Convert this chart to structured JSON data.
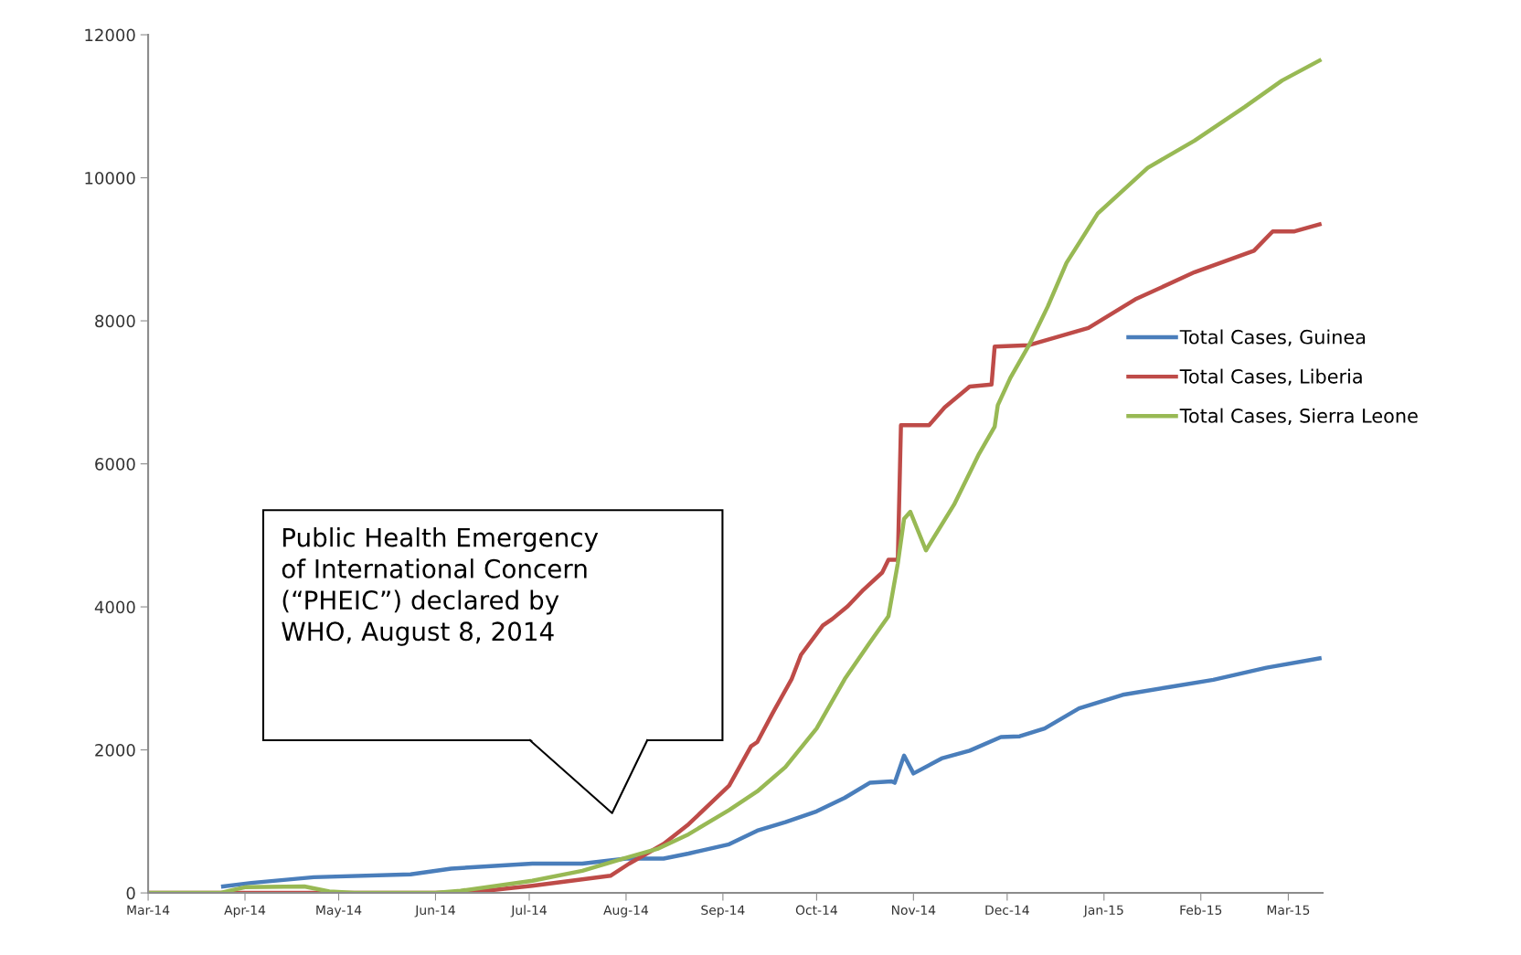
{
  "chart_data": {
    "type": "line",
    "xlim": [
      "2014-03-01",
      "2015-03-12"
    ],
    "xticks": [
      {
        "value": "2014-03-01",
        "label": "Mar-14"
      },
      {
        "value": "2014-04-01",
        "label": "Apr-14"
      },
      {
        "value": "2014-05-01",
        "label": "May-14"
      },
      {
        "value": "2014-06-01",
        "label": "Jun-14"
      },
      {
        "value": "2014-07-01",
        "label": "Jul-14"
      },
      {
        "value": "2014-08-01",
        "label": "Aug-14"
      },
      {
        "value": "2014-09-01",
        "label": "Sep-14"
      },
      {
        "value": "2014-10-01",
        "label": "Oct-14"
      },
      {
        "value": "2014-11-01",
        "label": "Nov-14"
      },
      {
        "value": "2014-12-01",
        "label": "Dec-14"
      },
      {
        "value": "2015-01-01",
        "label": "Jan-15"
      },
      {
        "value": "2015-02-01",
        "label": "Feb-15"
      },
      {
        "value": "2015-03-01",
        "label": "Mar-15"
      }
    ],
    "ylim": [
      0,
      12000
    ],
    "yticks": [
      0,
      2000,
      4000,
      6000,
      8000,
      10000,
      12000
    ],
    "grid": false,
    "legend": "right",
    "marker": "none",
    "line_style": "solid",
    "annotations": [
      "Public Health Emergency\nof International Concern\n(“PHEIC”) declared by\nWHO, August 8, 2014"
    ],
    "series": [
      {
        "name": "Total Cases, Guinea",
        "color": "#4a7ebb",
        "x": [
          "2014-03-25",
          "2014-04-03",
          "2014-04-23",
          "2014-05-24",
          "2014-06-06",
          "2014-07-02",
          "2014-07-18",
          "2014-08-01",
          "2014-08-13",
          "2014-08-21",
          "2014-09-03",
          "2014-09-12",
          "2014-09-21",
          "2014-10-01",
          "2014-10-10",
          "2014-10-18",
          "2014-10-25",
          "2014-10-26",
          "2014-10-29",
          "2014-11-01",
          "2014-11-10",
          "2014-11-19",
          "2014-11-29",
          "2014-12-05",
          "2014-12-13",
          "2014-12-24",
          "2015-01-07",
          "2015-01-22",
          "2015-02-05",
          "2015-02-22",
          "2015-03-11"
        ],
        "values": [
          90,
          140,
          220,
          260,
          340,
          410,
          410,
          480,
          480,
          550,
          680,
          870,
          990,
          1140,
          1330,
          1540,
          1560,
          1540,
          1920,
          1670,
          1880,
          1990,
          2180,
          2190,
          2300,
          2580,
          2770,
          2880,
          2980,
          3150,
          3280
        ]
      },
      {
        "name": "Total Cases, Liberia",
        "color": "#be4b48",
        "x": [
          "2014-03-01",
          "2014-06-01",
          "2014-06-17",
          "2014-07-02",
          "2014-07-27",
          "2014-08-02",
          "2014-08-13",
          "2014-08-21",
          "2014-09-03",
          "2014-09-10",
          "2014-09-12",
          "2014-09-17",
          "2014-09-23",
          "2014-09-26",
          "2014-10-03",
          "2014-10-06",
          "2014-10-11",
          "2014-10-16",
          "2014-10-22",
          "2014-10-24",
          "2014-10-27",
          "2014-10-28",
          "2014-11-06",
          "2014-11-11",
          "2014-11-19",
          "2014-11-26",
          "2014-11-27",
          "2014-12-08",
          "2014-12-27",
          "2015-01-11",
          "2015-01-30",
          "2015-02-18",
          "2015-02-24",
          "2015-03-03",
          "2015-03-11"
        ],
        "values": [
          0,
          0,
          30,
          100,
          240,
          410,
          685,
          960,
          1500,
          2050,
          2110,
          2520,
          2990,
          3330,
          3740,
          3830,
          4010,
          4240,
          4480,
          4660,
          4660,
          6540,
          6540,
          6790,
          7080,
          7110,
          7640,
          7660,
          7900,
          8300,
          8680,
          8980,
          9250,
          9250,
          9350
        ]
      },
      {
        "name": "Total Cases, Sierra Leone",
        "color": "#98b954",
        "x": [
          "2014-03-01",
          "2014-03-24",
          "2014-04-01",
          "2014-04-20",
          "2014-04-28",
          "2014-05-06",
          "2014-06-01",
          "2014-06-09",
          "2014-07-02",
          "2014-07-18",
          "2014-07-31",
          "2014-08-11",
          "2014-08-21",
          "2014-09-03",
          "2014-09-12",
          "2014-09-21",
          "2014-10-01",
          "2014-10-10",
          "2014-10-18",
          "2014-10-24",
          "2014-10-27",
          "2014-10-29",
          "2014-10-31",
          "2014-11-05",
          "2014-11-14",
          "2014-11-22",
          "2014-11-27",
          "2014-11-28",
          "2014-12-02",
          "2014-12-08",
          "2014-12-14",
          "2014-12-20",
          "2014-12-30",
          "2015-01-15",
          "2015-01-30",
          "2015-02-15",
          "2015-02-27",
          "2015-03-11"
        ],
        "values": [
          0,
          0,
          80,
          90,
          20,
          0,
          0,
          30,
          170,
          310,
          480,
          615,
          820,
          1160,
          1420,
          1760,
          2300,
          2990,
          3500,
          3870,
          4610,
          5230,
          5330,
          4790,
          5430,
          6140,
          6520,
          6820,
          7200,
          7660,
          8200,
          8810,
          9500,
          10140,
          10520,
          10990,
          11360,
          11640
        ]
      }
    ]
  }
}
